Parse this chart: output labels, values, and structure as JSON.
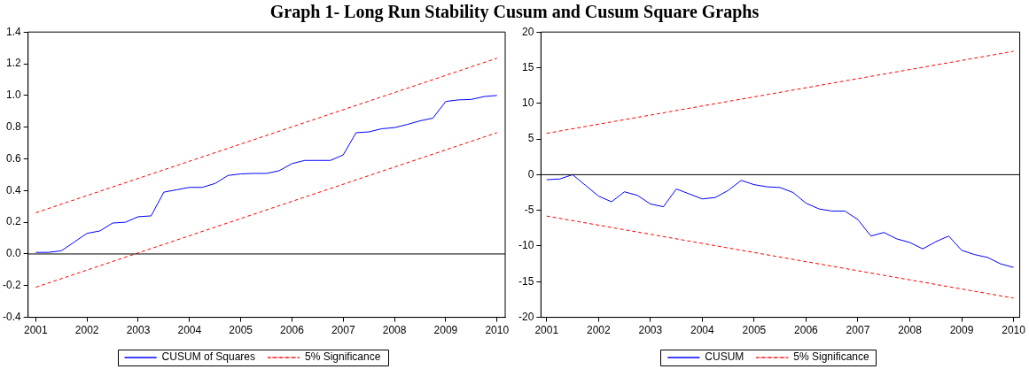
{
  "chart_data": [
    {
      "type": "line",
      "title": "Graph 1- Long Run Stability Cusum and Cusum Square Graphs",
      "xlim": [
        2000.85,
        2010.16
      ],
      "xticks": [
        2001,
        2002,
        2003,
        2004,
        2005,
        2006,
        2007,
        2008,
        2009,
        2010
      ],
      "ylim": [
        -0.4,
        1.4
      ],
      "yticks": [
        -0.4,
        -0.2,
        {
          "value": 0,
          "label": "0.0"
        },
        0.2,
        0.4,
        0.6,
        0.8,
        {
          "value": 1,
          "label": "1.0"
        },
        1.2,
        1.4
      ],
      "legend": "bottom",
      "line_style": "solid",
      "marker": "none",
      "series": [
        {
          "name": "CUSUM of Squares",
          "color": "#0000ff",
          "x": [
            2001,
            2001.25,
            2001.5,
            2001.75,
            2002,
            2002.25,
            2002.5,
            2002.75,
            2003,
            2003.25,
            2003.5,
            2003.75,
            2004,
            2004.25,
            2004.5,
            2004.75,
            2005,
            2005.25,
            2005.5,
            2005.75,
            2006,
            2006.25,
            2006.5,
            2006.75,
            2007,
            2007.25,
            2007.5,
            2007.75,
            2008,
            2008.25,
            2008.5,
            2008.75,
            2009,
            2009.25,
            2009.5,
            2009.75,
            2010
          ],
          "values": [
            0.01,
            0.01,
            0.02,
            0.075,
            0.13,
            0.145,
            0.195,
            0.2,
            0.235,
            0.24,
            0.39,
            0.405,
            0.42,
            0.42,
            0.445,
            0.495,
            0.505,
            0.508,
            0.508,
            0.525,
            0.57,
            0.59,
            0.59,
            0.59,
            0.625,
            0.765,
            0.77,
            0.79,
            0.797,
            0.817,
            0.84,
            0.857,
            0.962,
            0.972,
            0.975,
            0.993,
            1.0
          ]
        },
        {
          "name": "5% Significance",
          "color": "#ff0000",
          "line_style": "dashed",
          "x": [
            2001,
            2010
          ],
          "values": [
            0.26,
            1.235
          ]
        },
        {
          "color": "#ff0000",
          "line_style": "dashed",
          "x": [
            2001,
            2010
          ],
          "values": [
            -0.21,
            0.765
          ]
        }
      ],
      "ref_lines": [
        {
          "axis": "y",
          "value": 0,
          "color": "#000000"
        }
      ]
    },
    {
      "type": "line",
      "xlim": [
        2000.89,
        2010.12
      ],
      "xticks": [
        2001,
        2002,
        2003,
        2004,
        2005,
        2006,
        2007,
        2008,
        2009,
        2010
      ],
      "ylim": [
        -20,
        20
      ],
      "yticks": [
        -20,
        -15,
        -10,
        -5,
        0,
        5,
        10,
        15,
        20
      ],
      "legend": "bottom",
      "line_style": "solid",
      "marker": "none",
      "series": [
        {
          "name": "CUSUM",
          "color": "#0000ff",
          "x": [
            2001,
            2001.25,
            2001.5,
            2001.75,
            2002,
            2002.25,
            2002.5,
            2002.75,
            2003,
            2003.25,
            2003.5,
            2003.75,
            2004,
            2004.25,
            2004.5,
            2004.75,
            2005,
            2005.25,
            2005.5,
            2005.75,
            2006,
            2006.25,
            2006.5,
            2006.75,
            2007,
            2007.25,
            2007.5,
            2007.75,
            2008,
            2008.25,
            2008.5,
            2008.75,
            2009,
            2009.25,
            2009.5,
            2009.75,
            2010
          ],
          "values": [
            -0.7,
            -0.6,
            0.0,
            -1.5,
            -3.0,
            -3.8,
            -2.4,
            -2.9,
            -4.1,
            -4.5,
            -2.0,
            -2.7,
            -3.4,
            -3.2,
            -2.2,
            -0.8,
            -1.4,
            -1.7,
            -1.8,
            -2.5,
            -4.0,
            -4.8,
            -5.1,
            -5.1,
            -6.3,
            -8.6,
            -8.1,
            -9.0,
            -9.5,
            -10.4,
            -9.4,
            -8.6,
            -10.6,
            -11.2,
            -11.6,
            -12.5,
            -13.0
          ]
        },
        {
          "name": "5% Significance",
          "color": "#ff0000",
          "line_style": "dashed",
          "x": [
            2001,
            2010
          ],
          "values": [
            5.8,
            17.3
          ]
        },
        {
          "color": "#ff0000",
          "line_style": "dashed",
          "x": [
            2001,
            2010
          ],
          "values": [
            -5.8,
            -17.3
          ]
        }
      ],
      "ref_lines": [
        {
          "axis": "y",
          "value": 0,
          "color": "#000000"
        }
      ]
    }
  ]
}
